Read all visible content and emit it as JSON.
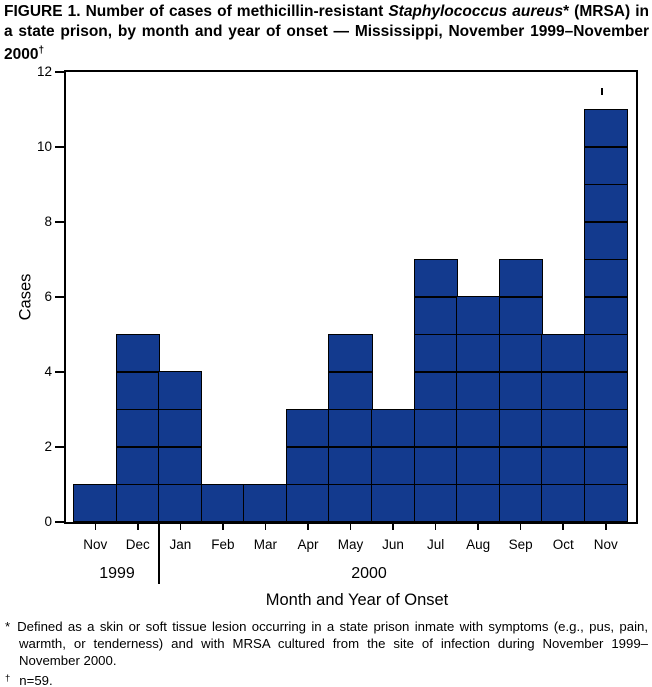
{
  "figure": {
    "title_segments": [
      {
        "text": "FIGURE 1. Number of cases of methicillin-resistant ",
        "style": "normal"
      },
      {
        "text": "Staphylococcus aureus",
        "style": "italic"
      },
      {
        "text": "* (MRSA) in a state prison, by month and year of onset — Mississippi, November 1999–November 2000",
        "style": "normal"
      },
      {
        "text": "†",
        "style": "sup"
      }
    ]
  },
  "chart_data": {
    "type": "bar",
    "title": "FIGURE 1. Number of cases of methicillin-resistant Staphylococcus aureus (MRSA) in a state prison, by month and year of onset — Mississippi, November 1999–November 2000",
    "categories": [
      "Nov",
      "Dec",
      "Jan",
      "Feb",
      "Mar",
      "Apr",
      "May",
      "Jun",
      "Jul",
      "Aug",
      "Sep",
      "Oct",
      "Nov"
    ],
    "values": [
      1,
      5,
      4,
      1,
      1,
      3,
      5,
      3,
      7,
      6,
      7,
      5,
      11
    ],
    "total_n": 59,
    "ylabel": "Cases",
    "xlabel": "Month and Year of Onset",
    "ylim": [
      0,
      12
    ],
    "yticks": [
      0,
      2,
      4,
      6,
      8,
      10,
      12
    ],
    "year_groups": [
      {
        "label": "1999",
        "start_index": 0,
        "end_index": 1
      },
      {
        "label": "2000",
        "start_index": 2,
        "end_index": 12
      }
    ],
    "bar_color": "#133a8e",
    "bar_border_color": "#000000",
    "grid": false,
    "legend_position": "none",
    "style_note": "bars subdivided into unit cells, one cell per case"
  },
  "footnotes": [
    {
      "marker": "*",
      "text": "Defined as a skin or soft tissue lesion occurring in a state prison inmate with symptoms (e.g., pus, pain, warmth, or tenderness) and with MRSA cultured from the site of infection during November 1999–November 2000."
    },
    {
      "marker": "†",
      "text": "n=59."
    }
  ]
}
